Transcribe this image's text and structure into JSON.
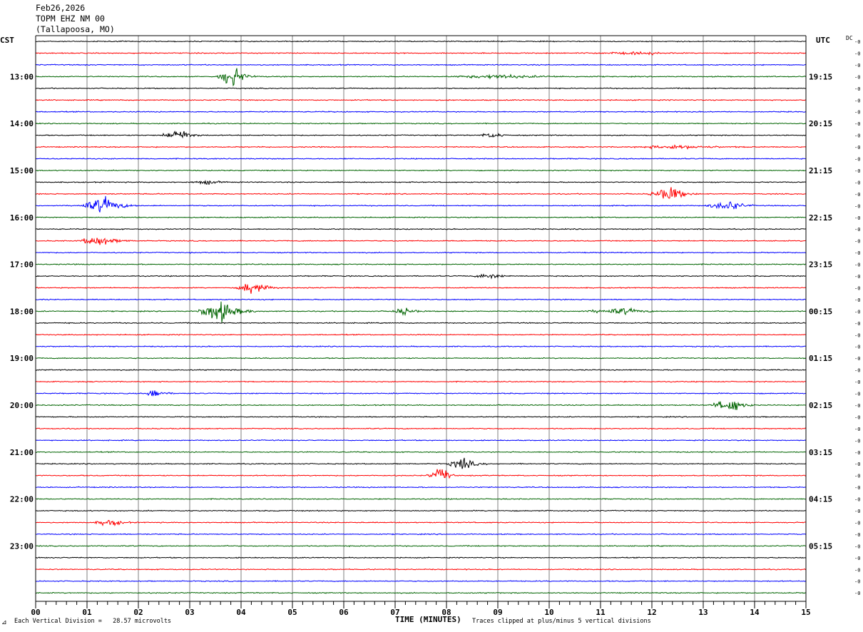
{
  "header": {
    "date": "Feb26,2026",
    "station": "TOPM EHZ NM 00",
    "location": "(Tallapoosa, MO)"
  },
  "left_zone": "CST",
  "right_zone": "UTC",
  "dc_label": "DC",
  "offset_marker": "-0",
  "footer": {
    "scale_note": "Each Vertical Division =   28.57 microvolts",
    "xlabel": "TIME (MINUTES)",
    "clip_note": "Traces clipped at plus/minus 5 vertical divisions",
    "corner_mark": "⊿"
  },
  "colors": {
    "trace_cycle": [
      "#000000",
      "#ff0000",
      "#0000ff",
      "#006400"
    ],
    "grid": "#7f7f7f"
  },
  "chart_data": {
    "type": "line",
    "title": "",
    "xlabel": "TIME (MINUTES)",
    "xlim": [
      0,
      15
    ],
    "x_ticks": [
      "00",
      "01",
      "02",
      "03",
      "04",
      "05",
      "06",
      "07",
      "08",
      "09",
      "10",
      "11",
      "12",
      "13",
      "14",
      "15"
    ],
    "trace_count": 48,
    "minutes_per_trace": 15,
    "first_trace_start_cst": "12:15",
    "left_hour_labels": [
      "13:00",
      "14:00",
      "15:00",
      "16:00",
      "17:00",
      "18:00",
      "19:00",
      "20:00",
      "21:00",
      "22:00",
      "23:00"
    ],
    "right_hour_labels": [
      "19:15",
      "20:15",
      "21:15",
      "22:15",
      "23:15",
      "00:15",
      "01:15",
      "02:15",
      "03:15",
      "04:15",
      "05:15"
    ],
    "events": [
      {
        "trace": 3,
        "start_min": 3.5,
        "peak_min": 3.85,
        "end_min": 4.3,
        "amplitude": 5
      },
      {
        "trace": 3,
        "start_min": 8.0,
        "peak_min": 9.0,
        "end_min": 11.0,
        "amplitude": 0.8
      },
      {
        "trace": 1,
        "start_min": 10.5,
        "peak_min": 12.0,
        "end_min": 12.5,
        "amplitude": 0.5
      },
      {
        "trace": 8,
        "start_min": 2.4,
        "peak_min": 2.85,
        "end_min": 3.3,
        "amplitude": 2.5
      },
      {
        "trace": 8,
        "start_min": 8.6,
        "peak_min": 8.95,
        "end_min": 9.3,
        "amplitude": 1.2
      },
      {
        "trace": 9,
        "start_min": 11.6,
        "peak_min": 12.5,
        "end_min": 14.0,
        "amplitude": 0.8
      },
      {
        "trace": 12,
        "start_min": 3.0,
        "peak_min": 3.4,
        "end_min": 3.8,
        "amplitude": 0.9
      },
      {
        "trace": 13,
        "start_min": 11.9,
        "peak_min": 12.4,
        "end_min": 12.9,
        "amplitude": 3.2
      },
      {
        "trace": 14,
        "start_min": 0.8,
        "peak_min": 1.35,
        "end_min": 2.0,
        "amplitude": 3.5
      },
      {
        "trace": 14,
        "start_min": 13.0,
        "peak_min": 13.6,
        "end_min": 14.0,
        "amplitude": 2.2
      },
      {
        "trace": 17,
        "start_min": 0.8,
        "peak_min": 1.25,
        "end_min": 1.9,
        "amplitude": 2.3
      },
      {
        "trace": 20,
        "start_min": 8.5,
        "peak_min": 8.85,
        "end_min": 9.3,
        "amplitude": 1.3
      },
      {
        "trace": 21,
        "start_min": 3.9,
        "peak_min": 4.2,
        "end_min": 4.8,
        "amplitude": 3.0
      },
      {
        "trace": 23,
        "start_min": 3.1,
        "peak_min": 3.6,
        "end_min": 4.3,
        "amplitude": 5
      },
      {
        "trace": 23,
        "start_min": 6.9,
        "peak_min": 7.2,
        "end_min": 7.6,
        "amplitude": 1.6
      },
      {
        "trace": 23,
        "start_min": 10.6,
        "peak_min": 11.5,
        "end_min": 12.2,
        "amplitude": 1.3
      },
      {
        "trace": 30,
        "start_min": 2.1,
        "peak_min": 2.35,
        "end_min": 2.7,
        "amplitude": 2.0
      },
      {
        "trace": 31,
        "start_min": 13.1,
        "peak_min": 13.6,
        "end_min": 14.0,
        "amplitude": 3.0
      },
      {
        "trace": 36,
        "start_min": 8.0,
        "peak_min": 8.3,
        "end_min": 8.8,
        "amplitude": 3.0
      },
      {
        "trace": 37,
        "start_min": 7.6,
        "peak_min": 7.95,
        "end_min": 8.2,
        "amplitude": 3.4
      },
      {
        "trace": 41,
        "start_min": 1.1,
        "peak_min": 1.5,
        "end_min": 1.9,
        "amplitude": 1.5
      }
    ]
  }
}
